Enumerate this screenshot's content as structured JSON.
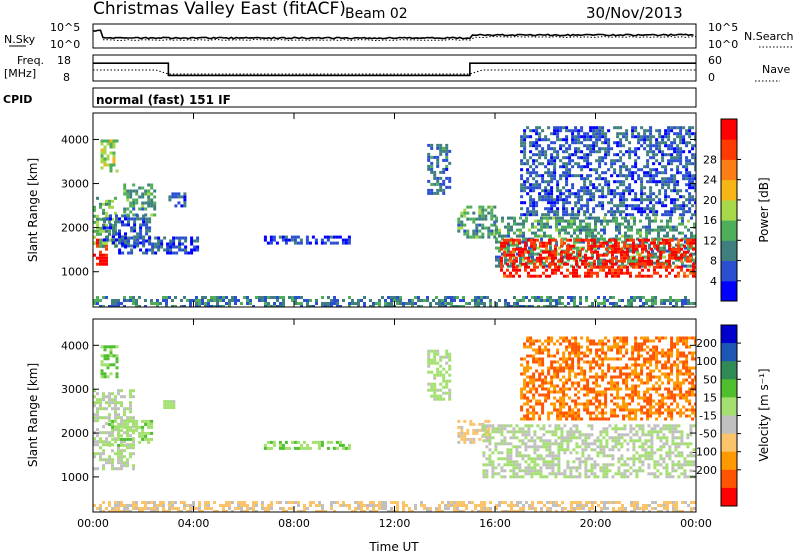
{
  "header": {
    "title": "Christmas Valley East (fitACF)",
    "beam": "Beam 02",
    "date": "30/Nov/2013",
    "cpid_label": "CPID",
    "cpid_value": "normal (fast) 151 IF"
  },
  "strip_panels": {
    "nsky": {
      "left_label": "N.Sky",
      "right_label": "N.Search",
      "left_ticks": [
        "10^5",
        "10^0"
      ],
      "right_ticks": [
        "10^5",
        "10^0"
      ]
    },
    "freq": {
      "left_label_line1": "Freq.",
      "left_label_line2": "[MHz]",
      "right_label": "Nave",
      "left_ticks": [
        "18",
        "8"
      ],
      "right_ticks": [
        "60",
        "0"
      ],
      "freq_steps": [
        {
          "t": 0.0,
          "mhz": 16.0
        },
        {
          "t": 3.0,
          "mhz": 11.3
        },
        {
          "t": 15.0,
          "mhz": 16.0
        },
        {
          "t": 24.0,
          "mhz": 16.0
        }
      ]
    }
  },
  "colors": {
    "power_scale": [
      "#0000ff",
      "#2a4fd1",
      "#3f7f7f",
      "#4fae5a",
      "#a6d84a",
      "#f6b616",
      "#fa7d16",
      "#ff3a00",
      "#ff0000"
    ],
    "velocity_scale": [
      "#0000cc",
      "#1e56b4",
      "#2f8a56",
      "#4fbf2f",
      "#a4e070",
      "#c0c0c0",
      "#fbc36a",
      "#ff9900",
      "#ff5500",
      "#ff0000"
    ]
  },
  "chart_data": [
    {
      "type": "heatmap",
      "name": "power",
      "xlabel": "",
      "ylabel": "Slant Range [km]",
      "xlim": [
        0,
        24
      ],
      "ylim": [
        200,
        4600
      ],
      "y_ticks": [
        "1000",
        "2000",
        "3000",
        "4000"
      ],
      "colorbar": {
        "label": "Power [dB]",
        "ticks": [
          "4",
          "8",
          "12",
          "16",
          "20",
          "24",
          "28"
        ],
        "range": [
          0,
          30
        ]
      },
      "regions": [
        {
          "t0": 0.0,
          "t1": 0.5,
          "r0": 1200,
          "r1": 1750,
          "v": 28
        },
        {
          "t0": 0.0,
          "t1": 0.9,
          "r0": 1550,
          "r1": 2700,
          "v": 12
        },
        {
          "t0": 0.4,
          "t1": 2.3,
          "r0": 1600,
          "r1": 2300,
          "v": 6
        },
        {
          "t0": 1.0,
          "t1": 4.2,
          "r0": 1400,
          "r1": 1800,
          "v": 5
        },
        {
          "t0": 0.3,
          "t1": 1.0,
          "r0": 3300,
          "r1": 4000,
          "v": 14
        },
        {
          "t0": 1.2,
          "t1": 2.5,
          "r0": 2300,
          "r1": 3000,
          "v": 10
        },
        {
          "t0": 3.0,
          "t1": 3.7,
          "r0": 2500,
          "r1": 2800,
          "v": 6
        },
        {
          "t0": 6.8,
          "t1": 10.2,
          "r0": 1680,
          "r1": 1820,
          "v": 4
        },
        {
          "t0": 0.0,
          "t1": 24.0,
          "r0": 200,
          "r1": 450,
          "v": 8
        },
        {
          "t0": 13.3,
          "t1": 14.2,
          "r0": 2800,
          "r1": 3900,
          "v": 7
        },
        {
          "t0": 14.5,
          "t1": 16.0,
          "r0": 1800,
          "r1": 2500,
          "v": 10
        },
        {
          "t0": 16.0,
          "t1": 24.0,
          "r0": 1100,
          "r1": 2250,
          "v": 10
        },
        {
          "t0": 16.2,
          "t1": 24.0,
          "r0": 900,
          "r1": 1750,
          "v": 27
        },
        {
          "t0": 17.0,
          "t1": 24.0,
          "r0": 2300,
          "r1": 4300,
          "v": 6
        }
      ]
    },
    {
      "type": "heatmap",
      "name": "velocity",
      "xlabel": "Time UT",
      "ylabel": "Slant Range [km]",
      "xlim": [
        0,
        24
      ],
      "ylim": [
        200,
        4600
      ],
      "x_ticks": [
        "00:00",
        "04:00",
        "08:00",
        "12:00",
        "16:00",
        "20:00",
        "00:00"
      ],
      "y_ticks": [
        "1000",
        "2000",
        "3000",
        "4000"
      ],
      "colorbar": {
        "label": "Velocity [m s⁻¹]",
        "ticks": [
          "200",
          "100",
          "50",
          "15",
          "-15",
          "-50",
          "-100",
          "-200"
        ],
        "range": [
          -250,
          250
        ]
      },
      "regions": [
        {
          "t0": 0.0,
          "t1": 1.6,
          "r0": 1200,
          "r1": 3000,
          "v": 0
        },
        {
          "t0": 0.6,
          "t1": 2.3,
          "r0": 1700,
          "r1": 2300,
          "v": 30
        },
        {
          "t0": 0.3,
          "t1": 1.0,
          "r0": 3300,
          "r1": 4000,
          "v": 60
        },
        {
          "t0": 2.8,
          "t1": 3.4,
          "r0": 2550,
          "r1": 2750,
          "v": 0
        },
        {
          "t0": 6.8,
          "t1": 10.2,
          "r0": 1680,
          "r1": 1820,
          "v": 40
        },
        {
          "t0": 0.0,
          "t1": 24.0,
          "r0": 200,
          "r1": 450,
          "v": -60
        },
        {
          "t0": 13.3,
          "t1": 14.2,
          "r0": 2800,
          "r1": 3900,
          "v": 20
        },
        {
          "t0": 14.5,
          "t1": 15.8,
          "r0": 1800,
          "r1": 2300,
          "v": -60
        },
        {
          "t0": 15.5,
          "t1": 24.0,
          "r0": 1000,
          "r1": 2200,
          "v": 0
        },
        {
          "t0": 17.0,
          "t1": 24.0,
          "r0": 2300,
          "r1": 4200,
          "v": -150
        }
      ]
    }
  ]
}
